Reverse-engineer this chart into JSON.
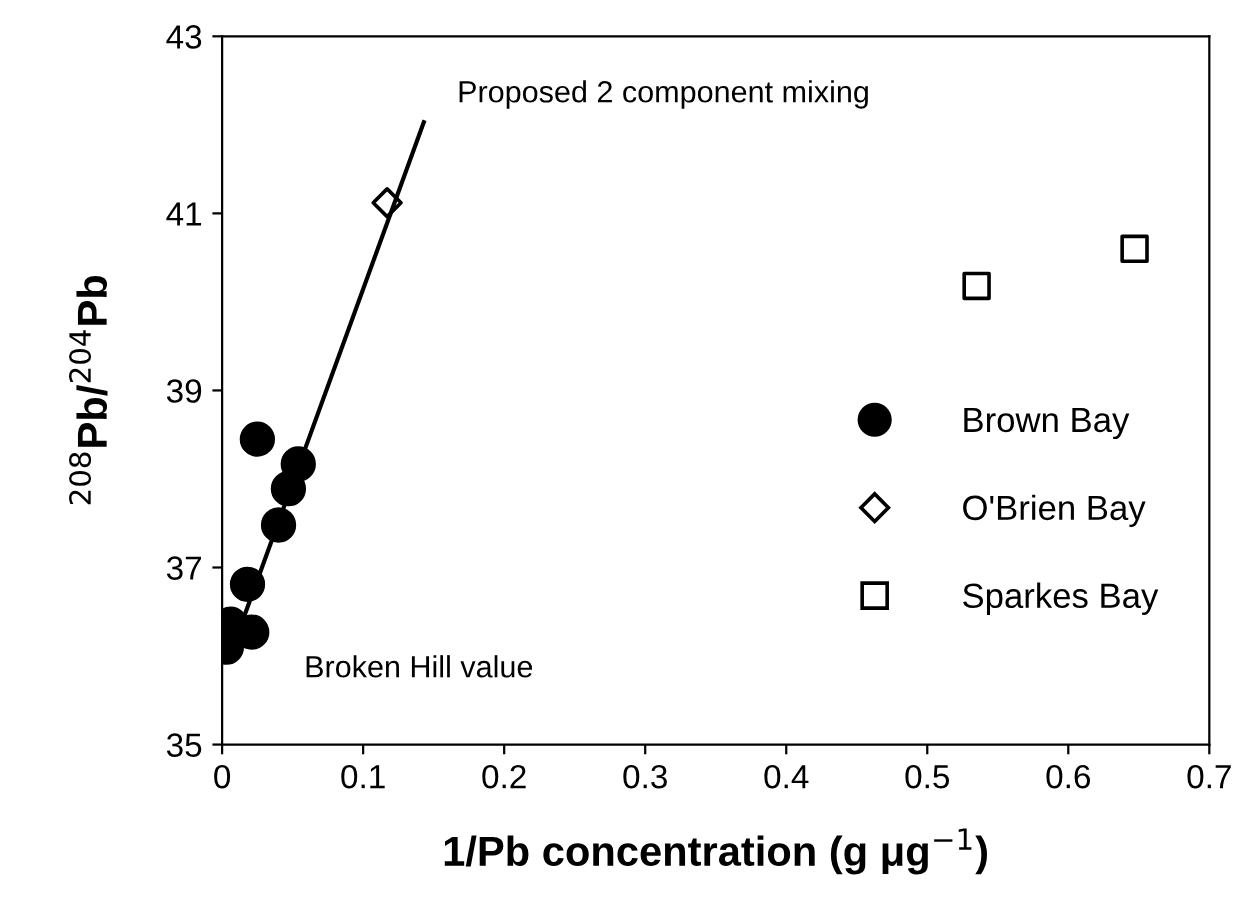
{
  "chart_data": {
    "type": "scatter",
    "xlabel": "1/Pb concentration (g μg$^{−1}$)",
    "ylabel": "$^{208}$Pb/$^{204}$Pb",
    "xlim": [
      0,
      0.7
    ],
    "ylim": [
      35,
      43
    ],
    "xticks": [
      {
        "value": 0,
        "label": "0"
      },
      0.1,
      0.2,
      0.3,
      0.4,
      0.5,
      0.6,
      0.7
    ],
    "yticks": [
      35,
      37,
      39,
      41,
      43
    ],
    "grid": false,
    "legend": "right",
    "series": [
      {
        "name": "Brown Bay",
        "color": "#000000",
        "marker": "circle",
        "x": [
          0.025,
          0.054,
          0.047,
          0.04,
          0.018,
          0.006,
          0.021,
          0.003
        ],
        "values": [
          38.45,
          38.17,
          37.89,
          37.48,
          36.81,
          36.36,
          36.27,
          36.1
        ]
      },
      {
        "name": "O'Brien Bay",
        "color": "#000000",
        "marker": "diamond",
        "x": [
          0.117
        ],
        "values": [
          41.12
        ]
      },
      {
        "name": "Sparkes Bay",
        "color": "#000000",
        "marker": "square",
        "x": [
          0.535,
          0.647
        ],
        "values": [
          40.18,
          40.6
        ]
      },
      {
        "type": "line",
        "color": "#000000",
        "marker": "none",
        "x": [
          0.01,
          0.143
        ],
        "values": [
          36.2,
          42.03
        ]
      }
    ],
    "annotations": [
      {
        "text": "Proposed 2 component mixing",
        "x": 0.143,
        "y": 42.03
      },
      {
        "text": "Broken Hill value",
        "x": 0.003,
        "y": 36.1
      }
    ]
  }
}
